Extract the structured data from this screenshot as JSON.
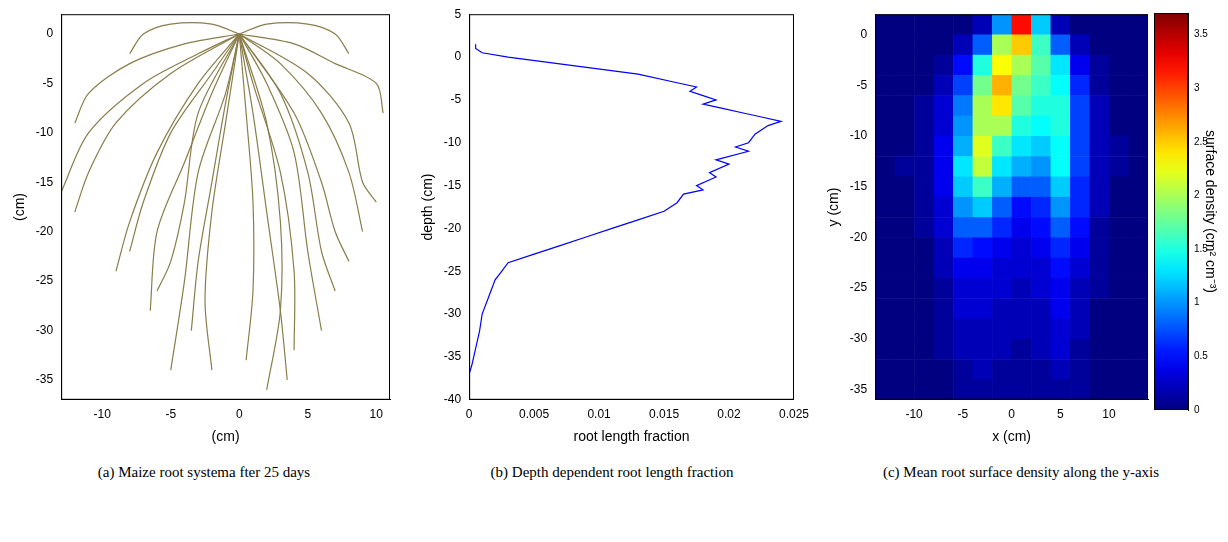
{
  "chart_data": [
    {
      "type": "line",
      "title": "(a) Maize root systema fter 25 days",
      "x_label": "(cm)",
      "y_label": "(cm)",
      "xlim": [
        -13,
        11
      ],
      "xticks": [
        -10,
        -5,
        0,
        5,
        10
      ],
      "ylim": [
        -37,
        2
      ],
      "yticks": [
        -35,
        -30,
        -25,
        -20,
        -15,
        -10,
        -5,
        0
      ],
      "color": "#8a7d4a",
      "roots": [
        {
          "x": [
            0,
            -3,
            -7,
            -11,
            -13
          ],
          "y": [
            0,
            -2,
            -5,
            -10,
            -16
          ]
        },
        {
          "x": [
            0,
            -2,
            -5,
            -7,
            -8
          ],
          "y": [
            0,
            -4,
            -10,
            -17,
            -22
          ]
        },
        {
          "x": [
            0,
            -1,
            -3,
            -4,
            -5
          ],
          "y": [
            0,
            -6,
            -14,
            -25,
            -34
          ]
        },
        {
          "x": [
            0,
            1,
            2,
            3,
            3.5
          ],
          "y": [
            0,
            -8,
            -18,
            -28,
            -35
          ]
        },
        {
          "x": [
            0,
            2,
            4,
            5,
            6
          ],
          "y": [
            0,
            -5,
            -12,
            -22,
            -30
          ]
        },
        {
          "x": [
            0,
            3,
            6,
            8,
            9
          ],
          "y": [
            0,
            -3,
            -8,
            -14,
            -20
          ]
        },
        {
          "x": [
            0,
            4,
            7,
            10,
            10.5
          ],
          "y": [
            0,
            -1,
            -3,
            -5,
            -8
          ]
        },
        {
          "x": [
            0,
            -4,
            -8,
            -11,
            -12
          ],
          "y": [
            0,
            -1,
            -3,
            -6,
            -9
          ]
        },
        {
          "x": [
            0,
            -1,
            -2,
            -3,
            -3.5
          ],
          "y": [
            0,
            -7,
            -15,
            -23,
            -30
          ]
        },
        {
          "x": [
            0,
            0.5,
            1,
            1,
            0.5
          ],
          "y": [
            0,
            -8,
            -17,
            -26,
            -33
          ]
        },
        {
          "x": [
            0,
            3,
            5,
            6,
            7
          ],
          "y": [
            0,
            -6,
            -14,
            -22,
            -26
          ]
        },
        {
          "x": [
            0,
            -3,
            -6,
            -8,
            -9
          ],
          "y": [
            0,
            -5,
            -12,
            -19,
            -24
          ]
        },
        {
          "x": [
            0,
            -2,
            -4,
            -6,
            -6.5
          ],
          "y": [
            0,
            -6,
            -13,
            -20,
            -28
          ]
        },
        {
          "x": [
            0,
            1,
            3,
            4,
            4
          ],
          "y": [
            0,
            -5,
            -14,
            -24,
            -32
          ]
        },
        {
          "x": [
            0,
            2,
            5,
            7,
            8
          ],
          "y": [
            0,
            1,
            1,
            0,
            -2
          ]
        },
        {
          "x": [
            0,
            -2,
            -5,
            -7,
            -8
          ],
          "y": [
            0,
            1,
            1,
            0,
            -2
          ]
        },
        {
          "x": [
            0,
            5,
            8,
            9,
            10
          ],
          "y": [
            0,
            -4,
            -9,
            -15,
            -17
          ]
        },
        {
          "x": [
            0,
            -5,
            -9,
            -11,
            -12
          ],
          "y": [
            0,
            -4,
            -9,
            -14,
            -18
          ]
        },
        {
          "x": [
            0,
            -1,
            -2,
            -2.5,
            -2
          ],
          "y": [
            0,
            -9,
            -18,
            -27,
            -34
          ]
        },
        {
          "x": [
            0,
            2,
            3,
            3,
            2
          ],
          "y": [
            0,
            -9,
            -19,
            -28,
            -36
          ]
        },
        {
          "x": [
            0,
            -3,
            -4,
            -5,
            -6
          ],
          "y": [
            0,
            -8,
            -17,
            -23,
            -26
          ]
        },
        {
          "x": [
            0,
            4,
            6,
            7,
            8
          ],
          "y": [
            0,
            -8,
            -15,
            -20,
            -23
          ]
        }
      ]
    },
    {
      "type": "line",
      "title": "(b) Depth dependent root length fraction",
      "x_label": "root length fraction",
      "y_label": "depth (cm)",
      "xlim": [
        0,
        0.025
      ],
      "xticks": [
        0,
        0.005,
        0.01,
        0.015,
        0.02,
        0.025
      ],
      "ylim": [
        -40,
        5
      ],
      "yticks": [
        -40,
        -35,
        -30,
        -25,
        -20,
        -15,
        -10,
        -5,
        0,
        5
      ],
      "color": "#0000ff",
      "x": [
        0.0005,
        0.0005,
        0.001,
        0.003,
        0.008,
        0.013,
        0.016,
        0.0175,
        0.017,
        0.018,
        0.019,
        0.018,
        0.0195,
        0.021,
        0.0225,
        0.024,
        0.023,
        0.022,
        0.0215,
        0.0205,
        0.0215,
        0.019,
        0.02,
        0.0185,
        0.019,
        0.0175,
        0.018,
        0.0165,
        0.016,
        0.015,
        0.013,
        0.011,
        0.009,
        0.007,
        0.005,
        0.003,
        0.0025,
        0.002,
        0.0015,
        0.001,
        0.0008,
        0.0005,
        0.0002,
        0
      ],
      "y": [
        1.5,
        1,
        0.5,
        0,
        -1,
        -2,
        -3,
        -3.5,
        -4,
        -4.5,
        -5,
        -5.5,
        -6,
        -6.5,
        -7,
        -7.5,
        -8,
        -9,
        -10,
        -10.5,
        -11,
        -12,
        -12.5,
        -13.5,
        -14,
        -15,
        -15.5,
        -16,
        -17,
        -18,
        -19,
        -20,
        -21,
        -22,
        -23,
        -24,
        -25,
        -26,
        -28,
        -30,
        -32,
        -34,
        -36,
        -37
      ]
    },
    {
      "type": "heatmap",
      "title": "(c) Mean root surface density along the y-axis",
      "x_label": "x (cm)",
      "y_label": "y (cm)",
      "xlim": [
        -14,
        14
      ],
      "xticks": [
        -10,
        -5,
        0,
        5,
        10
      ],
      "ylim": [
        -36,
        2
      ],
      "yticks": [
        -35,
        -30,
        -25,
        -20,
        -15,
        -10,
        -5,
        0
      ],
      "x_edges": [
        -14,
        -12,
        -10,
        -8,
        -6,
        -4,
        -2,
        0,
        2,
        4,
        6,
        8,
        10,
        12,
        14
      ],
      "y_edges": [
        2,
        0,
        -2,
        -4,
        -6,
        -8,
        -10,
        -12,
        -14,
        -16,
        -18,
        -20,
        -22,
        -24,
        -26,
        -28,
        -30,
        -32,
        -34,
        -36
      ],
      "cells": [
        [
          0,
          0,
          0,
          0,
          0,
          0.2,
          1.0,
          3.2,
          1.2,
          0.2,
          0,
          0,
          0,
          0
        ],
        [
          0,
          0,
          0,
          0,
          0.2,
          0.8,
          2.0,
          2.5,
          1.6,
          0.8,
          0.2,
          0,
          0,
          0
        ],
        [
          0,
          0,
          0,
          0.1,
          0.5,
          1.5,
          2.3,
          2.0,
          1.7,
          1.3,
          0.4,
          0.1,
          0,
          0
        ],
        [
          0,
          0,
          0,
          0.2,
          0.7,
          1.8,
          2.6,
          1.8,
          1.6,
          1.4,
          0.6,
          0.1,
          0,
          0
        ],
        [
          0,
          0,
          0.1,
          0.3,
          0.9,
          2.0,
          2.4,
          1.7,
          1.5,
          1.5,
          0.7,
          0.2,
          0,
          0
        ],
        [
          0,
          0,
          0.1,
          0.3,
          1.0,
          2.0,
          2.0,
          1.5,
          1.4,
          1.5,
          0.7,
          0.2,
          0,
          0
        ],
        [
          0,
          0,
          0.1,
          0.4,
          1.1,
          2.2,
          1.6,
          1.3,
          1.2,
          1.4,
          0.7,
          0.2,
          0.1,
          0
        ],
        [
          0,
          0.1,
          0.1,
          0.4,
          1.3,
          2.1,
          1.3,
          1.1,
          1.0,
          1.4,
          0.7,
          0.2,
          0.1,
          0
        ],
        [
          0,
          0,
          0.1,
          0.4,
          1.2,
          1.6,
          1.1,
          0.8,
          0.8,
          1.2,
          0.6,
          0.2,
          0,
          0
        ],
        [
          0,
          0,
          0.1,
          0.3,
          1.0,
          1.2,
          0.8,
          0.5,
          0.6,
          1.0,
          0.6,
          0.2,
          0,
          0
        ],
        [
          0,
          0,
          0.1,
          0.3,
          0.8,
          0.8,
          0.6,
          0.4,
          0.5,
          0.8,
          0.5,
          0.1,
          0,
          0
        ],
        [
          0,
          0,
          0,
          0.2,
          0.6,
          0.5,
          0.4,
          0.3,
          0.4,
          0.6,
          0.4,
          0.1,
          0,
          0
        ],
        [
          0,
          0,
          0,
          0.2,
          0.4,
          0.4,
          0.3,
          0.3,
          0.3,
          0.5,
          0.3,
          0.1,
          0,
          0
        ],
        [
          0,
          0,
          0,
          0.1,
          0.3,
          0.3,
          0.3,
          0.2,
          0.3,
          0.4,
          0.2,
          0.1,
          0,
          0
        ],
        [
          0,
          0,
          0,
          0.1,
          0.3,
          0.3,
          0.2,
          0.2,
          0.2,
          0.4,
          0.2,
          0,
          0,
          0
        ],
        [
          0,
          0,
          0,
          0.1,
          0.2,
          0.2,
          0.2,
          0.2,
          0.2,
          0.3,
          0.2,
          0,
          0,
          0
        ],
        [
          0,
          0,
          0,
          0.1,
          0.2,
          0.2,
          0.2,
          0.1,
          0.2,
          0.3,
          0.1,
          0,
          0,
          0
        ],
        [
          0,
          0,
          0,
          0,
          0.1,
          0.2,
          0.1,
          0.1,
          0.1,
          0.2,
          0.1,
          0,
          0,
          0
        ],
        [
          0,
          0,
          0,
          0,
          0.1,
          0.1,
          0.1,
          0.1,
          0.1,
          0.1,
          0.1,
          0,
          0,
          0
        ]
      ],
      "colorbar": {
        "label": "surface density (cm² cm⁻³)",
        "range": [
          0,
          3.7
        ],
        "ticks": [
          0,
          0.5,
          1,
          1.5,
          2,
          2.5,
          3,
          3.5
        ]
      }
    }
  ]
}
